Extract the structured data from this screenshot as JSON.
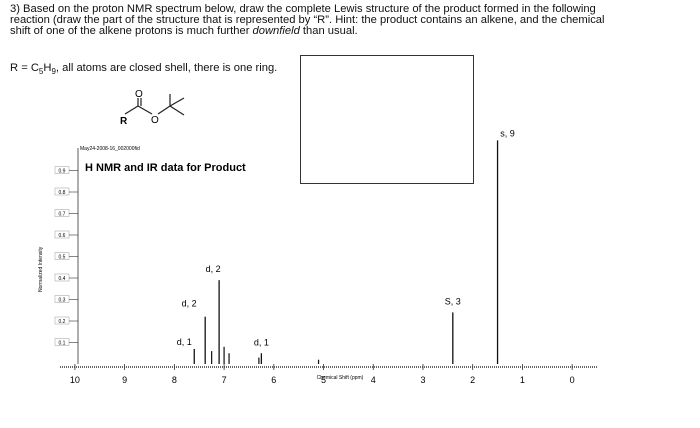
{
  "question": {
    "lines": [
      "3) Based on the proton NMR spectrum below, draw the complete Lewis structure of the product formed in the following",
      "reaction (draw the part of the structure that is represented by “R”. Hint: the product contains an alkene, and the chemical"
    ],
    "last_line": [
      "shift of one of the alkene protons is much further ",
      "downfield",
      " than usual."
    ]
  },
  "r_definition": [
    "R = C",
    "5",
    "H",
    "9",
    ", all atoms are closed shell, there is one ring."
  ],
  "structure": {
    "r_label": "R",
    "o_top": "O",
    "o_ring": "O"
  },
  "chart_data": {
    "type": "nmr",
    "file_label": "May24-2008-16_002000fid",
    "title": "H NMR and IR data for Product",
    "y_label": "Normalized Intensity",
    "x_label": "Chemical Shift (ppm)",
    "xlim": [
      10.3,
      -0.5
    ],
    "ylim": [
      0,
      1.1
    ],
    "xticks": [
      10,
      9,
      8,
      7,
      6,
      5,
      4,
      3,
      2,
      1,
      0
    ],
    "yticks": [
      0.1,
      0.2,
      0.3,
      0.4,
      0.5,
      0.6,
      0.7,
      0.8,
      0.9
    ],
    "peaks": {
      "ppm": [
        1.5,
        2.4,
        7.1,
        7.38,
        7.6,
        6.25
      ],
      "intensity": [
        1.04,
        0.24,
        0.39,
        0.22,
        0.07,
        0.05
      ],
      "labels": [
        "s, 9",
        "S, 3",
        "d, 2",
        "d, 2",
        "d, 1",
        "d, 1"
      ]
    },
    "minor_peaks": {
      "ppm": [
        7.25,
        7.0,
        6.9,
        5.1,
        6.3
      ],
      "intensity": [
        0.06,
        0.08,
        0.05,
        0.02,
        0.03
      ]
    }
  }
}
